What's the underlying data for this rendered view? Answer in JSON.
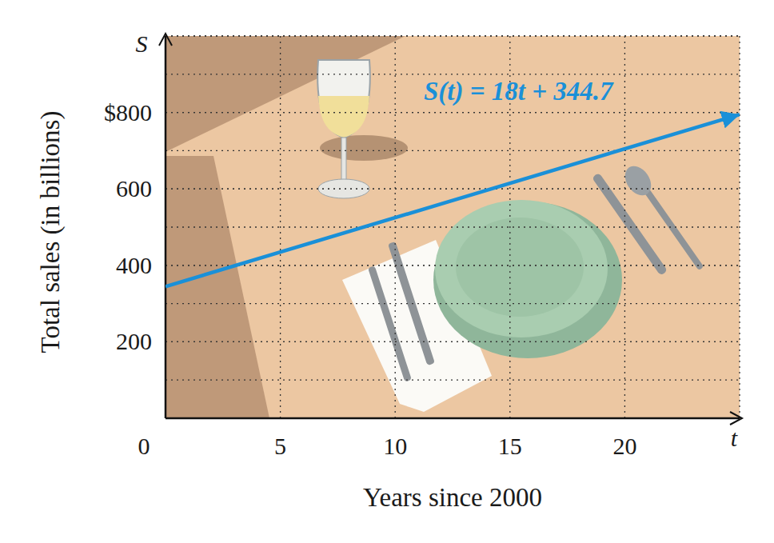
{
  "chart_data": {
    "type": "line",
    "annotation": "S(t) = 18t + 344.7",
    "x_label": "Years since 2000",
    "y_label": "Total sales (in billions)",
    "x_symbol": "t",
    "y_symbol": "S",
    "x": [
      0,
      25
    ],
    "values": [
      344.7,
      794.7
    ],
    "color": "#1a90d8",
    "line_style": "solid",
    "xlim": [
      0,
      25
    ],
    "ylim": [
      0,
      1000
    ],
    "xticks": [
      0,
      5,
      10,
      15,
      20
    ],
    "yticks": [
      200,
      400,
      600,
      {
        "value": 800,
        "label": "$800"
      }
    ],
    "grid": true
  }
}
